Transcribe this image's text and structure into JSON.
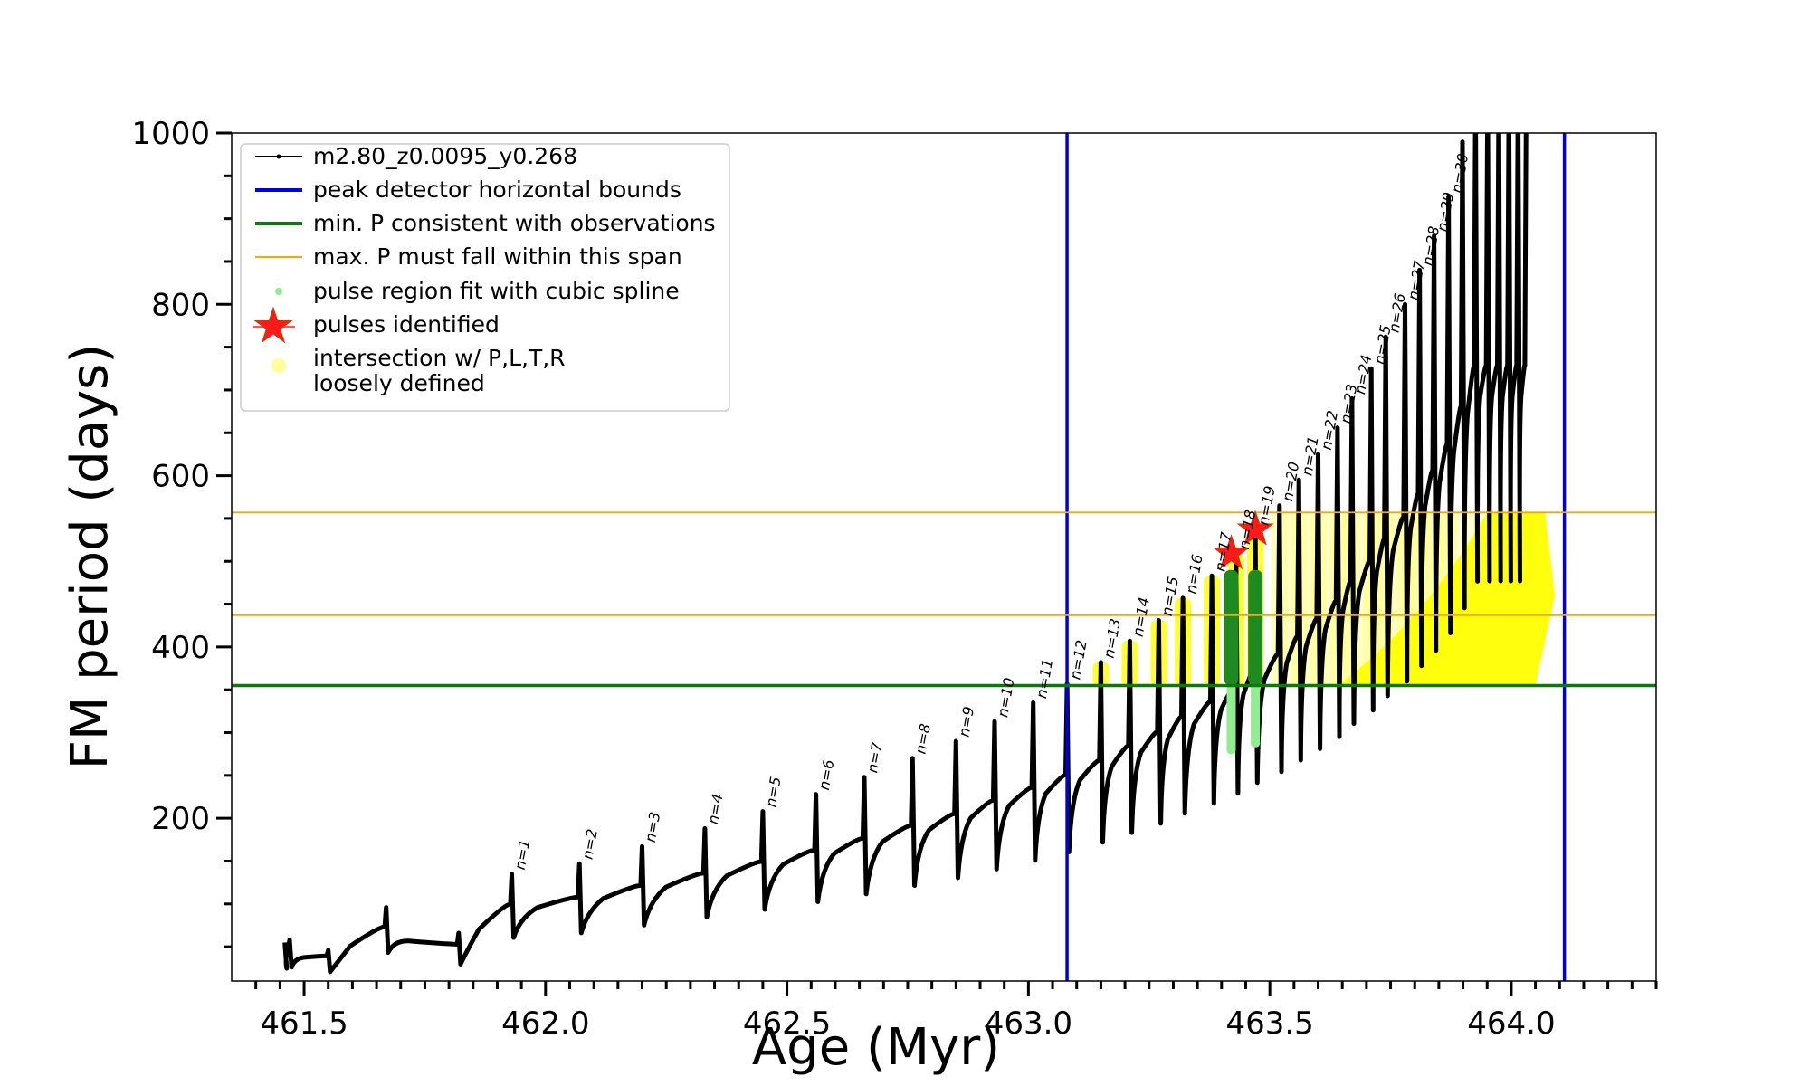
{
  "chart_data": {
    "type": "line",
    "title": "",
    "xlabel": "Age (Myr)",
    "ylabel": "FM period (days)",
    "xlim": [
      461.35,
      464.3
    ],
    "ylim": [
      10,
      1000
    ],
    "x_ticks": [
      461.5,
      462.0,
      462.5,
      463.0,
      463.5,
      464.0
    ],
    "x_tick_labels": [
      "461.5",
      "462.0",
      "462.5",
      "463.0",
      "463.5",
      "464.0"
    ],
    "y_ticks": [
      200,
      400,
      600,
      800,
      1000
    ],
    "y_tick_labels": [
      "200",
      "400",
      "600",
      "800",
      "1000"
    ],
    "legend_position": "top-left",
    "legend": [
      {
        "label": "m2.80_z0.0095_y0.268",
        "kind": "line-marker",
        "color": "#000000"
      },
      {
        "label": "peak detector horizontal bounds",
        "kind": "line",
        "color": "#0000dd"
      },
      {
        "label": "min. P consistent with observations",
        "kind": "line",
        "color": "#0a7a0a"
      },
      {
        "label": "max. P must fall within this span",
        "kind": "thin-line",
        "color": "#ffa500"
      },
      {
        "label": "pulse region fit with cubic spline",
        "kind": "dot",
        "color": "#90ee90"
      },
      {
        "label": "pulses identified",
        "kind": "star",
        "color": "#ff0000"
      },
      {
        "label": "intersection w/ P,L,T,R",
        "label2": "loosely defined",
        "kind": "dot",
        "color": "#ffff99"
      }
    ],
    "vertical_lines": [
      {
        "name": "peak detector horizontal bounds",
        "x": 463.08,
        "color": "#0000dd"
      },
      {
        "name": "peak detector horizontal bounds",
        "x": 464.11,
        "color": "#0000dd"
      }
    ],
    "horizontal_lines": [
      {
        "name": "min. P consistent with observations",
        "y": 355,
        "color": "#0a7a0a"
      },
      {
        "name": "max. P must fall within this span",
        "y": 437,
        "color": "#ffa500"
      },
      {
        "name": "max. P must fall within this span",
        "y": 557,
        "color": "#ffa500"
      }
    ],
    "pulse_peaks": [
      {
        "label": "n=1",
        "x": 461.93,
        "y": 135
      },
      {
        "label": "n=2",
        "x": 462.07,
        "y": 147
      },
      {
        "label": "n=3",
        "x": 462.2,
        "y": 167
      },
      {
        "label": "n=4",
        "x": 462.33,
        "y": 188
      },
      {
        "label": "n=5",
        "x": 462.45,
        "y": 208
      },
      {
        "label": "n=6",
        "x": 462.56,
        "y": 228
      },
      {
        "label": "n=7",
        "x": 462.66,
        "y": 248
      },
      {
        "label": "n=8",
        "x": 462.76,
        "y": 270
      },
      {
        "label": "n=9",
        "x": 462.85,
        "y": 290
      },
      {
        "label": "n=10",
        "x": 462.93,
        "y": 313
      },
      {
        "label": "n=11",
        "x": 463.01,
        "y": 335
      },
      {
        "label": "n=12",
        "x": 463.08,
        "y": 357
      },
      {
        "label": "n=13",
        "x": 463.15,
        "y": 382
      },
      {
        "label": "n=14",
        "x": 463.21,
        "y": 407
      },
      {
        "label": "n=15",
        "x": 463.27,
        "y": 431
      },
      {
        "label": "n=16",
        "x": 463.32,
        "y": 457
      },
      {
        "label": "n=17",
        "x": 463.38,
        "y": 483
      },
      {
        "label": "n=18",
        "x": 463.43,
        "y": 509
      },
      {
        "label": "n=19",
        "x": 463.47,
        "y": 537
      },
      {
        "label": "n=20",
        "x": 463.52,
        "y": 565
      },
      {
        "label": "n=21",
        "x": 463.56,
        "y": 595
      },
      {
        "label": "n=22",
        "x": 463.6,
        "y": 625
      },
      {
        "label": "n=23",
        "x": 463.64,
        "y": 656
      },
      {
        "label": "n=24",
        "x": 463.67,
        "y": 690
      },
      {
        "label": "n=25",
        "x": 463.71,
        "y": 725
      },
      {
        "label": "n=26",
        "x": 463.74,
        "y": 762
      },
      {
        "label": "n=27",
        "x": 463.78,
        "y": 800
      },
      {
        "label": "n=28",
        "x": 463.81,
        "y": 840
      },
      {
        "label": "n=29",
        "x": 463.84,
        "y": 880
      },
      {
        "label": "n=30",
        "x": 463.87,
        "y": 925
      }
    ],
    "early_peaks": [
      {
        "x": 461.47,
        "y": 58
      },
      {
        "x": 461.55,
        "y": 46
      },
      {
        "x": 461.67,
        "y": 96
      },
      {
        "x": 461.82,
        "y": 66
      }
    ],
    "pulses_identified": [
      {
        "x": 463.42,
        "y": 509
      },
      {
        "x": 463.47,
        "y": 537
      }
    ]
  }
}
